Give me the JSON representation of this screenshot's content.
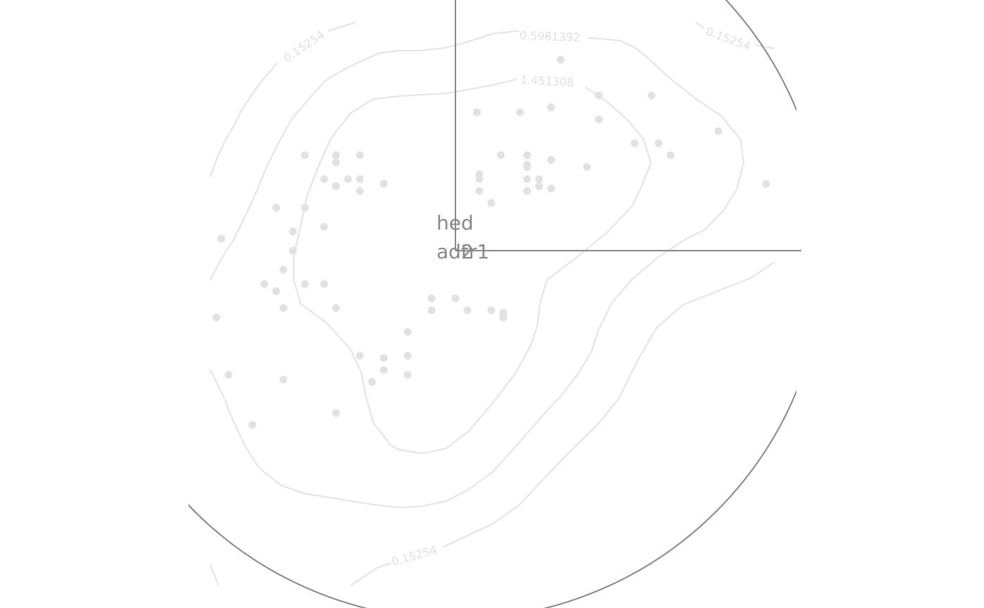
{
  "chart_data": {
    "type": "scatter",
    "contour_levels": [
      "0.15254",
      "0.5961392",
      "1.451308"
    ],
    "loadings": [
      {
        "label": "hed",
        "x": 0,
        "y": 0.95
      },
      {
        "label": "ad2",
        "x": 0.95,
        "y": 0
      },
      {
        "label": "tr1",
        "x": 0.95,
        "y": 0
      }
    ],
    "points": [
      [
        0.44,
        0.8
      ],
      [
        0.09,
        0.58
      ],
      [
        0.27,
        0.58
      ],
      [
        0.3,
        0.36
      ],
      [
        0.19,
        0.4
      ],
      [
        -0.63,
        0.4
      ],
      [
        -0.5,
        0.4
      ],
      [
        -0.5,
        0.37
      ],
      [
        -0.4,
        0.4
      ],
      [
        -0.3,
        0.28
      ],
      [
        -0.55,
        0.3
      ],
      [
        -0.5,
        0.27
      ],
      [
        -0.45,
        0.3
      ],
      [
        -0.4,
        0.3
      ],
      [
        -0.4,
        0.25
      ],
      [
        -0.3,
        0.28
      ],
      [
        -0.75,
        0.18
      ],
      [
        -0.63,
        0.18
      ],
      [
        -0.68,
        0.08
      ],
      [
        -0.55,
        0.1
      ],
      [
        -0.68,
        0.0
      ],
      [
        -0.72,
        -0.08
      ],
      [
        -0.8,
        -0.14
      ],
      [
        -0.75,
        -0.17
      ],
      [
        -0.63,
        -0.14
      ],
      [
        -0.55,
        -0.14
      ],
      [
        -0.98,
        0.05
      ],
      [
        -0.5,
        -0.24
      ],
      [
        -0.72,
        -0.24
      ],
      [
        -1.0,
        -0.28
      ],
      [
        -0.4,
        -0.44
      ],
      [
        -0.95,
        -0.52
      ],
      [
        -0.72,
        -0.54
      ],
      [
        -0.2,
        -0.34
      ],
      [
        -0.3,
        -0.45
      ],
      [
        -0.3,
        -0.5
      ],
      [
        -0.35,
        -0.55
      ],
      [
        -0.5,
        -0.68
      ],
      [
        -0.85,
        -0.73
      ],
      [
        -0.2,
        -0.44
      ],
      [
        -0.1,
        -0.2
      ],
      [
        0.0,
        -0.2
      ],
      [
        0.05,
        -0.25
      ],
      [
        0.15,
        -0.25
      ],
      [
        0.2,
        -0.26
      ],
      [
        0.2,
        -0.28
      ],
      [
        -0.2,
        -0.52
      ],
      [
        -0.1,
        -0.25
      ],
      [
        0.1,
        0.3
      ],
      [
        0.1,
        0.32
      ],
      [
        0.1,
        0.25
      ],
      [
        0.15,
        0.2
      ],
      [
        0.3,
        0.3
      ],
      [
        0.35,
        0.27
      ],
      [
        0.35,
        0.3
      ],
      [
        0.3,
        0.25
      ],
      [
        0.4,
        0.26
      ],
      [
        0.4,
        0.38
      ],
      [
        0.3,
        0.4
      ],
      [
        0.3,
        0.35
      ],
      [
        0.55,
        0.35
      ],
      [
        0.75,
        0.45
      ],
      [
        0.85,
        0.45
      ],
      [
        0.9,
        0.4
      ],
      [
        1.1,
        0.5
      ],
      [
        1.3,
        0.28
      ],
      [
        0.82,
        0.65
      ],
      [
        0.6,
        0.65
      ],
      [
        0.6,
        0.55
      ],
      [
        0.4,
        0.6
      ]
    ]
  }
}
